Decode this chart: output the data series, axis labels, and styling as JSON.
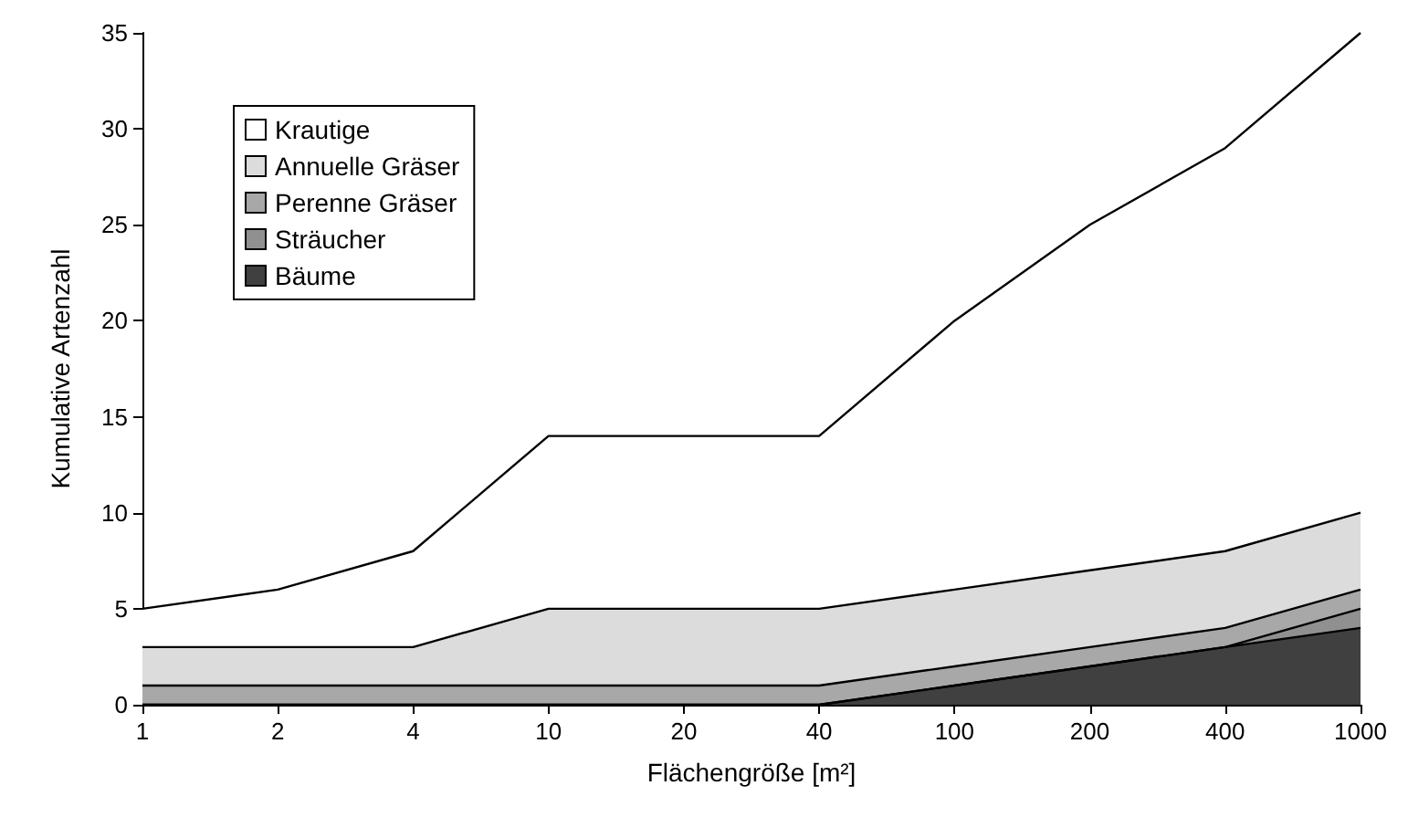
{
  "chart_data": {
    "type": "area",
    "stacked": true,
    "xlabel": "Flächengröße [m²]",
    "ylabel": "Kumulative Artenzahl",
    "categories": [
      "1",
      "2",
      "4",
      "10",
      "20",
      "40",
      "100",
      "200",
      "400",
      "1000"
    ],
    "series": [
      {
        "name": "Bäume",
        "color": "#404040",
        "values": [
          0,
          0,
          0,
          0,
          0,
          0,
          1,
          2,
          3,
          4
        ]
      },
      {
        "name": "Sträucher",
        "color": "#909090",
        "values": [
          0,
          0,
          0,
          0,
          0,
          0,
          0,
          0,
          0,
          1
        ]
      },
      {
        "name": "Perenne Gräser",
        "color": "#a8a8a8",
        "values": [
          1,
          1,
          1,
          1,
          1,
          1,
          1,
          1,
          1,
          1
        ]
      },
      {
        "name": "Annuelle Gräser",
        "color": "#dcdcdc",
        "values": [
          2,
          2,
          2,
          4,
          4,
          4,
          4,
          4,
          4,
          4
        ]
      },
      {
        "name": "Krautige",
        "color": "#ffffff",
        "values": [
          2,
          3,
          5,
          9,
          9,
          9,
          14,
          18,
          21,
          25
        ]
      }
    ],
    "ylim": [
      0,
      35
    ],
    "yticks": [
      0,
      5,
      10,
      15,
      20,
      25,
      30,
      35
    ],
    "grid": false,
    "legend": "top left"
  }
}
